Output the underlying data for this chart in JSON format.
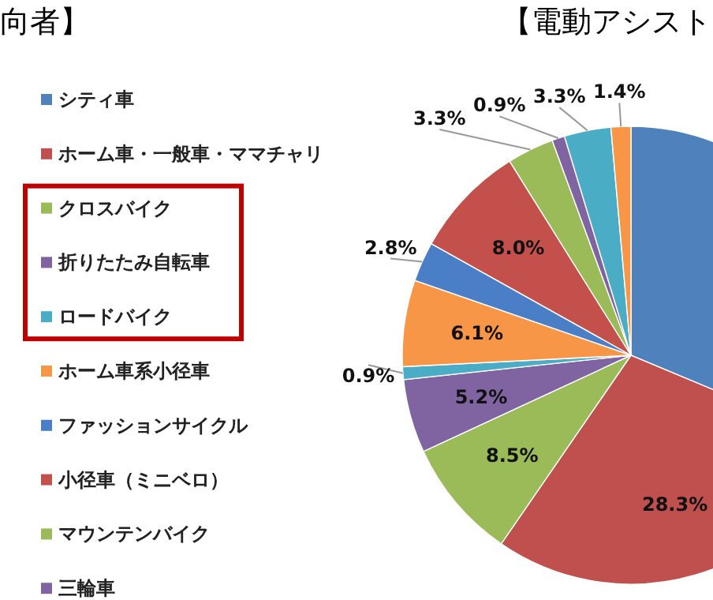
{
  "chart_data": {
    "type": "pie",
    "title": "【電動アシスト",
    "annotations": [
      "向者】"
    ],
    "categories": [
      "シティ車",
      "ホーム車・一般車・ママチャリ",
      "クロスバイク",
      "折りたたみ自転車",
      "ロードバイク",
      "ホーム車系小径車",
      "ファッションサイクル",
      "小径車（ミニベロ）",
      "マウンテンバイク",
      "三輪車",
      null,
      null
    ],
    "values": [
      31.3,
      28.3,
      8.5,
      5.2,
      0.9,
      6.1,
      2.8,
      8.0,
      3.3,
      0.9,
      3.3,
      1.4
    ],
    "value_labels": [
      null,
      "28.3%",
      "8.5%",
      "5.2%",
      "0.9%",
      "6.1%",
      "2.8%",
      "8.0%",
      "3.3%",
      "0.9%",
      "3.3%",
      "1.4%"
    ],
    "colors": [
      "#4f81bd",
      "#c0504d",
      "#9bbb59",
      "#8064a2",
      "#4bacc6",
      "#f79646",
      "#4a7ec6",
      "#c4504c",
      "#9bbb59",
      "#8064a2",
      "#4bacc6",
      "#f79646"
    ],
    "legend": "left"
  }
}
